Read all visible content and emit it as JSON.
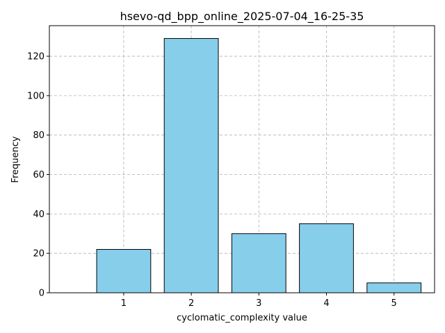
{
  "chart_data": {
    "type": "bar",
    "title": "hsevo-qd_bpp_online_2025-07-04_16-25-35",
    "xlabel": "cyclomatic_complexity value",
    "ylabel": "Frequency",
    "categories": [
      "1",
      "2",
      "3",
      "4",
      "5"
    ],
    "values": [
      22,
      129,
      30,
      35,
      5
    ],
    "ylim": [
      0,
      135.5
    ],
    "yticks": [
      0,
      20,
      40,
      60,
      80,
      100,
      120
    ],
    "grid": true,
    "bar_color": "#87ceeb",
    "bar_edge_color": "#000000"
  }
}
